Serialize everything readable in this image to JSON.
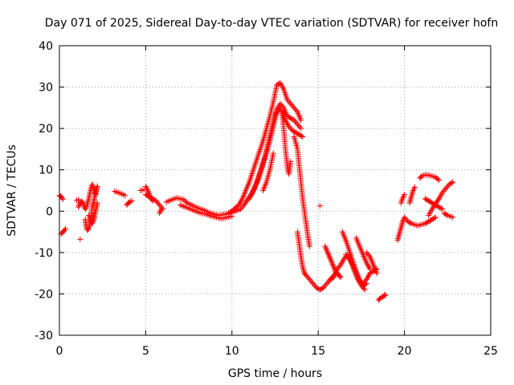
{
  "chart_data": {
    "type": "scatter",
    "title": "Day 071 of 2025, Sidereal Day-to-day VTEC variation (SDTVAR) for receiver hofn",
    "xlabel": "GPS time / hours",
    "ylabel": "SDTVAR / TECUs",
    "xlim": [
      0,
      25
    ],
    "ylim": [
      -30,
      40
    ],
    "xticks": [
      0,
      5,
      10,
      15,
      20,
      25
    ],
    "yticks": [
      -30,
      -20,
      -10,
      0,
      10,
      20,
      30,
      40
    ],
    "xtick_labels": [
      "0",
      "5",
      "10",
      "15",
      "20",
      "25"
    ],
    "ytick_labels": [
      "-30",
      "-20",
      "-10",
      "0",
      "10",
      "20",
      "30",
      "40"
    ],
    "grid": true,
    "marker": "+",
    "series": [
      {
        "name": "SDTVAR",
        "color": "#ff0000",
        "segments": [
          {
            "x": [
              0.0,
              0.1,
              0.2
            ],
            "y": [
              3.8,
              3.5,
              2.9
            ]
          },
          {
            "x": [
              0.1,
              0.2,
              0.3,
              0.35
            ],
            "y": [
              -5.5,
              -5.0,
              -4.6,
              -4.2
            ]
          },
          {
            "x": [
              1.0,
              1.1
            ],
            "y": [
              2.6,
              2.8
            ]
          },
          {
            "x": [
              1.2
            ],
            "y": [
              -6.8
            ]
          },
          {
            "x": [
              1.1,
              1.2,
              1.3,
              1.4,
              1.5,
              1.55,
              1.6,
              1.7,
              1.8,
              1.9,
              2.0,
              2.1,
              2.2
            ],
            "y": [
              1.0,
              2.0,
              2.4,
              1.5,
              0.5,
              0.8,
              1.5,
              3.0,
              5.0,
              6.5,
              5.0,
              4.0,
              6.0
            ]
          },
          {
            "x": [
              1.5,
              1.55,
              1.6,
              1.65,
              1.7,
              1.75,
              1.8,
              1.85,
              1.9,
              2.0,
              2.1,
              2.2
            ],
            "y": [
              -2.0,
              -3.5,
              -4.5,
              -4.5,
              -4.2,
              -3.5,
              -2.5,
              -1.0,
              1.0,
              2.5,
              4.5,
              6.0
            ]
          },
          {
            "x": [
              1.7,
              1.8,
              1.9,
              2.0,
              2.1,
              2.2
            ],
            "y": [
              -1.0,
              -2.0,
              -3.0,
              -2.0,
              0.0,
              2.0
            ]
          },
          {
            "x": [
              3.2,
              3.4,
              3.6,
              3.8
            ],
            "y": [
              4.8,
              4.5,
              4.2,
              3.8
            ]
          },
          {
            "x": [
              3.9,
              4.0,
              4.1,
              4.2
            ],
            "y": [
              1.5,
              2.0,
              2.3,
              2.5
            ]
          },
          {
            "x": [
              4.7,
              4.9
            ],
            "y": [
              5.0,
              5.2
            ]
          },
          {
            "x": [
              5.0,
              5.1,
              5.2,
              5.3,
              5.4
            ],
            "y": [
              6.0,
              5.2,
              4.2,
              3.2,
              2.5
            ]
          },
          {
            "x": [
              5.0,
              5.2,
              5.4,
              5.6,
              5.8,
              6.0
            ],
            "y": [
              4.0,
              3.5,
              3.0,
              2.5,
              1.5,
              0.5
            ]
          },
          {
            "x": [
              5.8,
              5.9
            ],
            "y": [
              -0.5,
              0.5
            ]
          },
          {
            "x": [
              6.2,
              6.4,
              6.6,
              6.8,
              7.0,
              7.2,
              7.4,
              7.6,
              7.8,
              8.0,
              8.2,
              8.4,
              8.6,
              8.8,
              9.0,
              9.2,
              9.4,
              9.6,
              9.8,
              10.0,
              10.2,
              10.4
            ],
            "y": [
              2.2,
              2.6,
              2.9,
              3.2,
              3.0,
              2.8,
              2.0,
              1.6,
              1.2,
              0.8,
              0.5,
              0.2,
              -0.2,
              -0.5,
              -0.8,
              -1.0,
              -0.9,
              -0.7,
              -0.6,
              -0.3,
              0.0,
              0.3
            ]
          },
          {
            "x": [
              7.0,
              7.3,
              7.6,
              7.9,
              8.2,
              8.5,
              8.8,
              9.1,
              9.4,
              9.7,
              10.0
            ],
            "y": [
              1.5,
              1.0,
              0.5,
              0.0,
              -0.5,
              -0.7,
              -1.2,
              -1.5,
              -1.8,
              -1.5,
              -1.2
            ]
          },
          {
            "x": [
              9.8,
              10.0,
              10.2,
              10.4,
              10.6,
              10.8,
              11.0,
              11.2,
              11.4,
              11.6,
              11.8,
              12.0,
              12.2,
              12.4,
              12.6,
              12.8,
              13.0,
              13.2,
              13.4,
              13.6,
              13.8,
              14.0
            ],
            "y": [
              -0.5,
              0.0,
              0.8,
              1.5,
              3.0,
              5.0,
              7.0,
              9.5,
              12.0,
              14.5,
              17.0,
              20.0,
              23.0,
              26.5,
              30.5,
              31.0,
              29.5,
              27.0,
              26.0,
              25.0,
              24.0,
              22.0
            ]
          },
          {
            "x": [
              10.5,
              10.7,
              10.9,
              11.1,
              11.3,
              11.5,
              11.7,
              11.9,
              12.1,
              12.3,
              12.5,
              12.7,
              12.9,
              13.1,
              13.3,
              13.5,
              13.7,
              13.9,
              14.1
            ],
            "y": [
              0.5,
              1.5,
              2.8,
              4.0,
              5.5,
              7.5,
              10.0,
              13.0,
              16.5,
              20.0,
              23.0,
              25.0,
              24.0,
              22.0,
              20.5,
              19.5,
              19.0,
              18.5,
              18.0
            ]
          },
          {
            "x": [
              11.0,
              11.2,
              11.4,
              11.6,
              11.8,
              12.0,
              12.2,
              12.4,
              12.6,
              12.8,
              13.0,
              13.2,
              13.4,
              13.6,
              13.8,
              14.0
            ],
            "y": [
              3.0,
              4.5,
              6.5,
              9.0,
              11.5,
              14.0,
              17.0,
              20.5,
              24.5,
              26.0,
              25.0,
              23.0,
              22.5,
              22.0,
              21.0,
              20.0
            ]
          },
          {
            "x": [
              11.8,
              12.0,
              12.2,
              12.4
            ],
            "y": [
              5.0,
              7.0,
              10.0,
              14.0
            ]
          },
          {
            "x": [
              12.9,
              13.0,
              13.1,
              13.2,
              13.3,
              13.4
            ],
            "y": [
              24.0,
              20.0,
              15.0,
              11.0,
              9.0,
              12.0
            ]
          },
          {
            "x": [
              13.6,
              13.8,
              13.9,
              14.0,
              14.1,
              14.2,
              14.3,
              14.4,
              14.5
            ],
            "y": [
              18.0,
              15.0,
              11.0,
              7.0,
              3.0,
              0.0,
              -3.0,
              -6.0,
              -8.5
            ]
          },
          {
            "x": [
              13.8,
              13.9,
              14.0,
              14.1,
              14.2,
              14.3,
              14.5,
              14.7,
              14.9,
              15.1,
              15.3,
              15.5,
              15.7,
              15.9
            ],
            "y": [
              -5.0,
              -8.0,
              -11.0,
              -13.5,
              -15.0,
              -15.5,
              -16.5,
              -17.5,
              -18.5,
              -19.0,
              -18.5,
              -17.5,
              -16.5,
              -15.5
            ]
          },
          {
            "x": [
              15.1
            ],
            "y": [
              1.3
            ]
          },
          {
            "x": [
              15.4,
              15.5,
              15.6,
              15.7,
              15.8,
              15.9,
              16.0,
              16.1,
              16.2,
              16.3
            ],
            "y": [
              -8.5,
              -9.5,
              -10.5,
              -11.5,
              -12.5,
              -13.5,
              -14.5,
              -15.0,
              -15.5,
              -16.0
            ]
          },
          {
            "x": [
              15.7,
              15.9,
              16.1,
              16.3,
              16.5,
              16.7,
              16.9,
              17.1,
              17.3,
              17.5,
              17.7
            ],
            "y": [
              -16.5,
              -16.0,
              -14.0,
              -13.0,
              -11.5,
              -10.5,
              -12.0,
              -14.5,
              -16.5,
              -18.0,
              -19.0
            ]
          },
          {
            "x": [
              16.4,
              16.6,
              16.8,
              17.0,
              17.2,
              17.4,
              17.6,
              17.8
            ],
            "y": [
              -5.0,
              -7.0,
              -9.5,
              -12.0,
              -14.5,
              -16.5,
              -18.0,
              -17.5
            ]
          },
          {
            "x": [
              16.6,
              16.8,
              17.0,
              17.2,
              17.4,
              17.6,
              17.8,
              18.0,
              18.2,
              18.4
            ],
            "y": [
              -10.5,
              -11.5,
              -13.0,
              -15.0,
              -17.0,
              -17.5,
              -16.5,
              -15.0,
              -14.5,
              -14.0
            ]
          },
          {
            "x": [
              17.2,
              17.4,
              17.6,
              17.8,
              18.0
            ],
            "y": [
              -6.5,
              -8.5,
              -10.5,
              -12.5,
              -14.0
            ]
          },
          {
            "x": [
              17.8,
              18.0,
              18.2,
              18.4
            ],
            "y": [
              -10.0,
              -11.0,
              -13.0,
              -15.0
            ]
          },
          {
            "x": [
              18.5,
              18.6,
              18.7,
              18.8,
              18.9
            ],
            "y": [
              -21.5,
              -21.0,
              -20.8,
              -20.5,
              -20.2
            ]
          },
          {
            "x": [
              19.6,
              19.7,
              19.8,
              19.9,
              20.0
            ],
            "y": [
              -7.0,
              -5.5,
              -4.0,
              -2.5,
              -1.5
            ]
          },
          {
            "x": [
              19.8,
              19.9,
              20.0
            ],
            "y": [
              2.0,
              3.2,
              4.0
            ]
          },
          {
            "x": [
              20.0,
              20.2,
              20.4,
              20.6,
              20.8,
              21.0,
              21.2,
              21.4,
              21.6,
              21.8
            ],
            "y": [
              -1.5,
              -2.5,
              -3.0,
              -3.3,
              -3.5,
              -3.2,
              -3.0,
              -2.5,
              -2.0,
              -1.5
            ]
          },
          {
            "x": [
              20.3,
              20.4,
              20.5,
              20.6
            ],
            "y": [
              2.0,
              3.5,
              5.0,
              5.8
            ]
          },
          {
            "x": [
              20.9,
              21.0,
              21.2,
              21.4,
              21.6,
              21.8,
              22.0
            ],
            "y": [
              8.0,
              8.5,
              8.8,
              8.7,
              8.5,
              8.2,
              7.5
            ]
          },
          {
            "x": [
              21.4,
              21.6,
              21.8,
              22.0,
              22.2,
              22.4,
              22.6,
              22.8
            ],
            "y": [
              -1.0,
              0.5,
              1.8,
              3.0,
              4.5,
              5.5,
              6.5,
              7.0
            ]
          },
          {
            "x": [
              21.2,
              21.4,
              21.6,
              21.8,
              22.0,
              22.2
            ],
            "y": [
              3.0,
              2.5,
              2.0,
              1.5,
              1.0,
              0.5
            ]
          },
          {
            "x": [
              22.3,
              22.5,
              22.7,
              22.8
            ],
            "y": [
              -0.5,
              -1.0,
              -1.3,
              -1.5
            ]
          }
        ]
      }
    ]
  }
}
